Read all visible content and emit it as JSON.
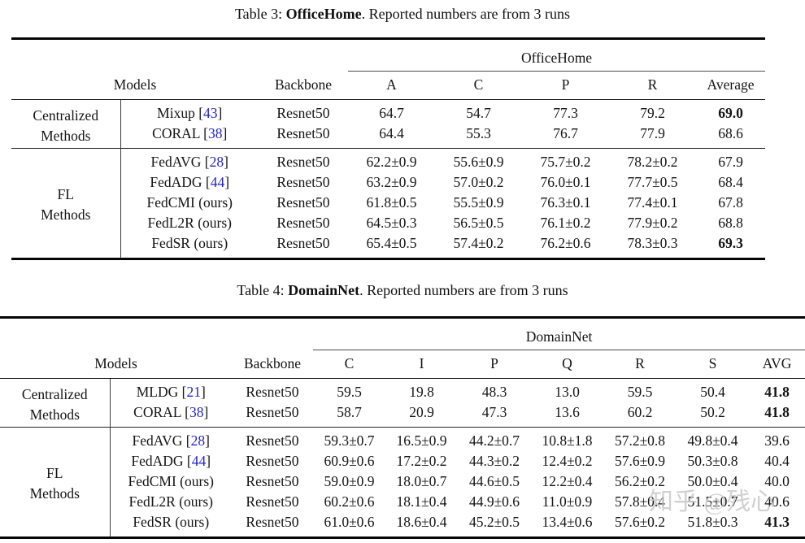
{
  "page": {
    "background": "#ffffff",
    "text_color": "#141414",
    "citation_color": "#2324c8",
    "rule_color": "#060606",
    "watermark": "知乎 @残心"
  },
  "tables": [
    {
      "caption": {
        "prefix": "Table 3: ",
        "dataset": "OfficeHome",
        "suffix": ". Reported numbers are from 3 runs"
      },
      "span_header": "OfficeHome",
      "models_header": "Models",
      "backbone_header": "Backbone",
      "col_headers": [
        "A",
        "C",
        "P",
        "R",
        "Average"
      ],
      "groups": [
        {
          "label_lines": [
            "Centralized",
            "Methods"
          ],
          "rows": [
            {
              "model": "Mixup",
              "cite": "43",
              "backbone": "Resnet50",
              "values": [
                "64.7",
                "54.7",
                "77.3",
                "79.2",
                "69.0"
              ],
              "bold_value_indices": [
                4
              ]
            },
            {
              "model": "CORAL",
              "cite": "38",
              "backbone": "Resnet50",
              "values": [
                "64.4",
                "55.3",
                "76.7",
                "77.9",
                "68.6"
              ],
              "bold_value_indices": []
            }
          ]
        },
        {
          "label_lines": [
            "FL",
            "Methods"
          ],
          "rows": [
            {
              "model": "FedAVG",
              "cite": "28",
              "backbone": "Resnet50",
              "values": [
                "62.2±0.9",
                "55.6±0.9",
                "75.7±0.2",
                "78.2±0.2",
                "67.9"
              ],
              "bold_value_indices": []
            },
            {
              "model": "FedADG",
              "cite": "44",
              "backbone": "Resnet50",
              "values": [
                "63.2±0.9",
                "57.0±0.2",
                "76.0±0.1",
                "77.7±0.5",
                "68.4"
              ],
              "bold_value_indices": []
            },
            {
              "model": "FedCMI (ours)",
              "cite": null,
              "backbone": "Resnet50",
              "values": [
                "61.8±0.5",
                "55.5±0.9",
                "76.3±0.1",
                "77.4±0.1",
                "67.8"
              ],
              "bold_value_indices": []
            },
            {
              "model": "FedL2R (ours)",
              "cite": null,
              "backbone": "Resnet50",
              "values": [
                "64.5±0.3",
                "56.5±0.5",
                "76.1±0.2",
                "77.9±0.2",
                "68.8"
              ],
              "bold_value_indices": []
            },
            {
              "model": "FedSR (ours)",
              "cite": null,
              "backbone": "Resnet50",
              "values": [
                "65.4±0.5",
                "57.4±0.2",
                "76.2±0.6",
                "78.3±0.3",
                "69.3"
              ],
              "bold_value_indices": [
                4
              ]
            }
          ]
        }
      ]
    },
    {
      "caption": {
        "prefix": "Table 4: ",
        "dataset": "DomainNet",
        "suffix": ". Reported numbers are from 3 runs"
      },
      "span_header": "DomainNet",
      "models_header": "Models",
      "backbone_header": "Backbone",
      "col_headers": [
        "C",
        "I",
        "P",
        "Q",
        "R",
        "S",
        "AVG"
      ],
      "groups": [
        {
          "label_lines": [
            "Centralized",
            "Methods"
          ],
          "rows": [
            {
              "model": "MLDG",
              "cite": "21",
              "backbone": "Resnet50",
              "values": [
                "59.5",
                "19.8",
                "48.3",
                "13.0",
                "59.5",
                "50.4",
                "41.8"
              ],
              "bold_value_indices": [
                6
              ]
            },
            {
              "model": "CORAL",
              "cite": "38",
              "backbone": "Resnet50",
              "values": [
                "58.7",
                "20.9",
                "47.3",
                "13.6",
                "60.2",
                "50.2",
                "41.8"
              ],
              "bold_value_indices": [
                6
              ]
            }
          ]
        },
        {
          "label_lines": [
            "FL",
            "Methods"
          ],
          "rows": [
            {
              "model": "FedAVG",
              "cite": "28",
              "backbone": "Resnet50",
              "values": [
                "59.3±0.7",
                "16.5±0.9",
                "44.2±0.7",
                "10.8±1.8",
                "57.2±0.8",
                "49.8±0.4",
                "39.6"
              ],
              "bold_value_indices": []
            },
            {
              "model": "FedADG",
              "cite": "44",
              "backbone": "Resnet50",
              "values": [
                "60.9±0.6",
                "17.2±0.2",
                "44.3±0.2",
                "12.4±0.2",
                "57.6±0.9",
                "50.3±0.8",
                "40.4"
              ],
              "bold_value_indices": []
            },
            {
              "model": "FedCMI (ours)",
              "cite": null,
              "backbone": "Resnet50",
              "values": [
                "59.0±0.9",
                "18.0±0.7",
                "44.6±0.5",
                "12.2±0.4",
                "56.2±0.2",
                "50.0±0.4",
                "40.0"
              ],
              "bold_value_indices": []
            },
            {
              "model": "FedL2R (ours)",
              "cite": null,
              "backbone": "Resnet50",
              "values": [
                "60.2±0.6",
                "18.1±0.4",
                "44.9±0.6",
                "11.0±0.9",
                "57.8±0.4",
                "51.5±0.7",
                "40.6"
              ],
              "bold_value_indices": []
            },
            {
              "model": "FedSR (ours)",
              "cite": null,
              "backbone": "Resnet50",
              "values": [
                "61.0±0.6",
                "18.6±0.4",
                "45.2±0.5",
                "13.4±0.6",
                "57.6±0.2",
                "51.8±0.3",
                "41.3"
              ],
              "bold_value_indices": [
                6
              ]
            }
          ]
        }
      ]
    }
  ]
}
